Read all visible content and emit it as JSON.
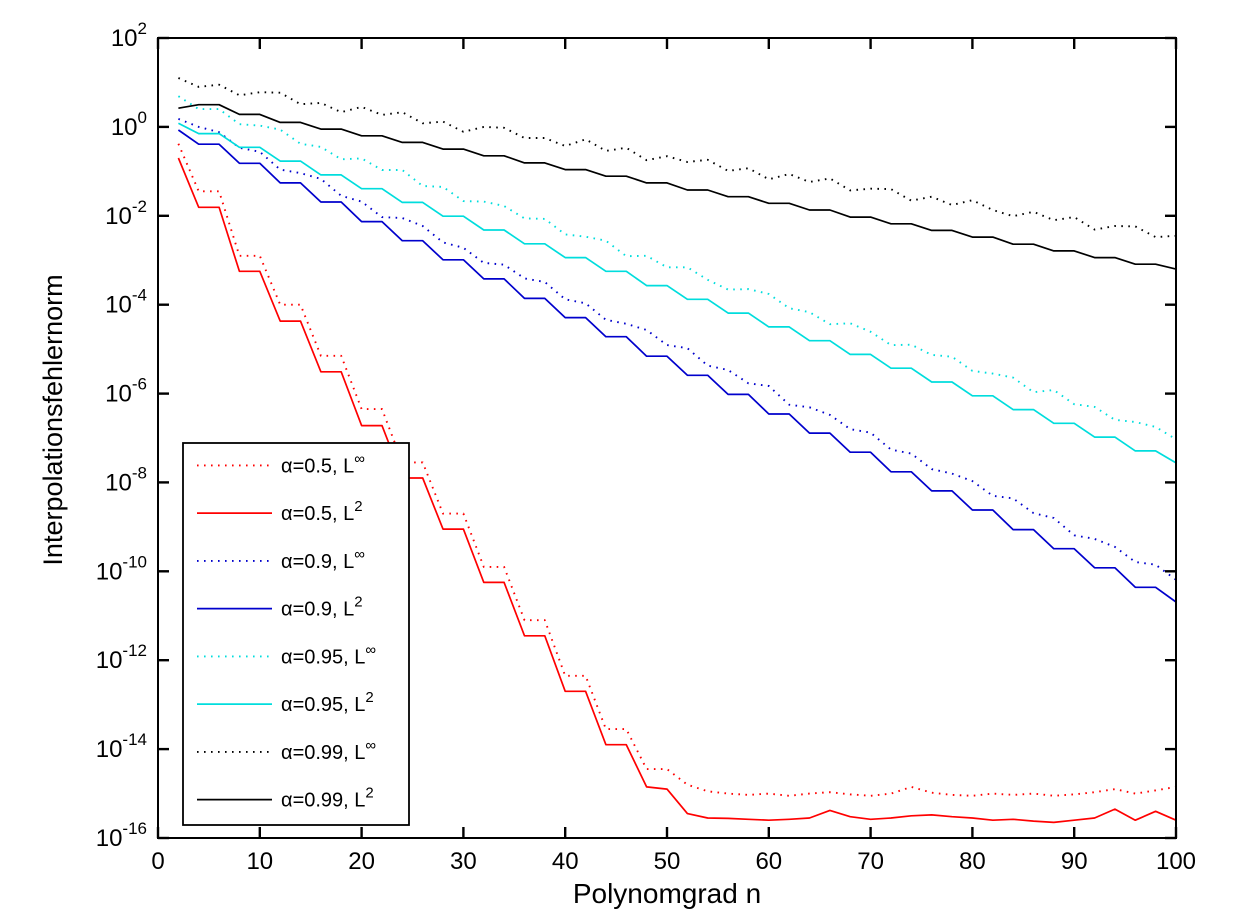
{
  "figure": {
    "background": "#ffffff",
    "axis_color": "#000000",
    "plot_background": "#ffffff"
  },
  "chart_data": {
    "type": "line",
    "title": "",
    "xlabel": "Polynomgrad n",
    "ylabel": "Interpolationsfehlernorm",
    "grid": false,
    "x_axis": {
      "min": 0,
      "max": 100,
      "ticks": [
        0,
        10,
        20,
        30,
        40,
        50,
        60,
        70,
        80,
        90,
        100
      ]
    },
    "y_axis": {
      "scale": "log10",
      "min_exp": -16,
      "max_exp": 2,
      "tick_base": "10",
      "tick_exponents": [
        2,
        0,
        -2,
        -4,
        -6,
        -8,
        -10,
        -12,
        -14,
        -16
      ]
    },
    "legend": {
      "position": "lower-left",
      "background": "#ffffff",
      "border_color": "#000000"
    },
    "x": [
      2,
      4,
      6,
      8,
      10,
      12,
      14,
      16,
      18,
      20,
      22,
      24,
      26,
      28,
      30,
      32,
      34,
      36,
      38,
      40,
      42,
      44,
      46,
      48,
      50,
      52,
      54,
      56,
      58,
      60,
      62,
      64,
      66,
      68,
      70,
      72,
      74,
      76,
      78,
      80,
      82,
      84,
      86,
      88,
      90,
      92,
      94,
      96,
      98,
      100
    ],
    "series": [
      {
        "id": "a05-linf",
        "label": {
          "text": "α=0.5, L",
          "sup": "∞"
        },
        "color": "#ff0000",
        "line_style": "dotted",
        "log10y": [
          -0.38,
          -1.45,
          -1.45,
          -2.9,
          -2.9,
          -4.0,
          -4.0,
          -5.15,
          -5.15,
          -6.35,
          -6.35,
          -7.55,
          -7.55,
          -8.7,
          -8.7,
          -9.9,
          -9.9,
          -11.1,
          -11.1,
          -12.35,
          -12.35,
          -13.55,
          -13.55,
          -14.45,
          -14.45,
          -14.8,
          -14.95,
          -15.0,
          -15.03,
          -15.0,
          -15.05,
          -15.0,
          -14.97,
          -15.02,
          -15.05,
          -15.0,
          -14.85,
          -14.98,
          -15.03,
          -15.05,
          -15.0,
          -15.03,
          -15.0,
          -15.05,
          -15.02,
          -14.97,
          -14.9,
          -15.0,
          -14.93,
          -14.85
        ]
      },
      {
        "id": "a05-l2",
        "label": {
          "text": "α=0.5, L",
          "sup": "2"
        },
        "color": "#ff0000",
        "line_style": "solid",
        "log10y": [
          -0.7,
          -1.81,
          -1.81,
          -3.25,
          -3.25,
          -4.37,
          -4.37,
          -5.51,
          -5.51,
          -6.72,
          -6.72,
          -7.9,
          -7.9,
          -9.05,
          -9.05,
          -10.25,
          -10.25,
          -11.45,
          -11.45,
          -12.7,
          -12.7,
          -13.9,
          -13.9,
          -14.85,
          -14.9,
          -15.45,
          -15.55,
          -15.56,
          -15.58,
          -15.6,
          -15.58,
          -15.55,
          -15.38,
          -15.52,
          -15.58,
          -15.55,
          -15.5,
          -15.48,
          -15.52,
          -15.55,
          -15.6,
          -15.58,
          -15.62,
          -15.65,
          -15.6,
          -15.55,
          -15.35,
          -15.6,
          -15.4,
          -15.6
        ]
      },
      {
        "id": "a09-linf",
        "label": {
          "text": "α=0.9, L",
          "sup": "∞"
        },
        "color": "#0000cc",
        "line_style": "dotted",
        "log10y": [
          0.18,
          0.0,
          -0.12,
          -0.47,
          -0.56,
          -0.96,
          -1.04,
          -1.17,
          -1.55,
          -1.68,
          -2.03,
          -2.05,
          -2.23,
          -2.6,
          -2.72,
          -3.06,
          -3.1,
          -3.41,
          -3.49,
          -3.88,
          -3.97,
          -4.34,
          -4.43,
          -4.57,
          -4.91,
          -4.98,
          -5.37,
          -5.47,
          -5.77,
          -5.83,
          -6.25,
          -6.31,
          -6.48,
          -6.8,
          -6.88,
          -7.26,
          -7.35,
          -7.7,
          -7.8,
          -7.97,
          -8.3,
          -8.36,
          -8.69,
          -8.8,
          -9.19,
          -9.27,
          -9.45,
          -9.79,
          -9.85,
          -10.19
        ]
      },
      {
        "id": "a09-l2",
        "label": {
          "text": "α=0.9, L",
          "sup": "2"
        },
        "color": "#0000cc",
        "line_style": "solid",
        "log10y": [
          -0.07,
          -0.39,
          -0.39,
          -0.82,
          -0.82,
          -1.26,
          -1.26,
          -1.69,
          -1.69,
          -2.13,
          -2.13,
          -2.56,
          -2.56,
          -2.99,
          -2.99,
          -3.42,
          -3.42,
          -3.86,
          -3.86,
          -4.29,
          -4.29,
          -4.72,
          -4.72,
          -5.16,
          -5.16,
          -5.59,
          -5.59,
          -6.02,
          -6.02,
          -6.46,
          -6.46,
          -6.89,
          -6.89,
          -7.32,
          -7.32,
          -7.76,
          -7.76,
          -8.19,
          -8.19,
          -8.62,
          -8.62,
          -9.06,
          -9.06,
          -9.49,
          -9.49,
          -9.92,
          -9.92,
          -10.36,
          -10.36,
          -10.69
        ]
      },
      {
        "id": "a095-linf",
        "label": {
          "text": "α=0.95, L",
          "sup": "∞"
        },
        "color": "#00dddd",
        "line_style": "dotted",
        "log10y": [
          0.69,
          0.4,
          0.4,
          0.06,
          0.03,
          -0.06,
          -0.38,
          -0.45,
          -0.73,
          -0.71,
          -0.97,
          -0.97,
          -1.33,
          -1.35,
          -1.67,
          -1.68,
          -1.78,
          -2.06,
          -2.07,
          -2.42,
          -2.47,
          -2.56,
          -2.91,
          -2.9,
          -3.16,
          -3.16,
          -3.44,
          -3.66,
          -3.65,
          -3.76,
          -4.08,
          -4.17,
          -4.44,
          -4.42,
          -4.61,
          -4.91,
          -4.9,
          -5.13,
          -5.17,
          -5.49,
          -5.55,
          -5.64,
          -5.97,
          -5.92,
          -6.24,
          -6.3,
          -6.59,
          -6.64,
          -6.75,
          -7.03
        ]
      },
      {
        "id": "a095-l2",
        "label": {
          "text": "α=0.95, L",
          "sup": "2"
        },
        "color": "#00dddd",
        "line_style": "solid",
        "log10y": [
          0.08,
          -0.15,
          -0.15,
          -0.46,
          -0.46,
          -0.77,
          -0.77,
          -1.08,
          -1.08,
          -1.39,
          -1.39,
          -1.7,
          -1.7,
          -2.01,
          -2.01,
          -2.32,
          -2.32,
          -2.63,
          -2.63,
          -2.94,
          -2.94,
          -3.25,
          -3.25,
          -3.57,
          -3.57,
          -3.88,
          -3.88,
          -4.19,
          -4.19,
          -4.5,
          -4.5,
          -4.81,
          -4.81,
          -5.12,
          -5.12,
          -5.43,
          -5.43,
          -5.74,
          -5.74,
          -6.05,
          -6.05,
          -6.36,
          -6.36,
          -6.67,
          -6.67,
          -6.98,
          -6.98,
          -7.29,
          -7.29,
          -7.56
        ]
      },
      {
        "id": "a099-linf",
        "label": {
          "text": "α=0.99, L",
          "sup": "∞"
        },
        "color": "#000000",
        "line_style": "dotted",
        "log10y": [
          1.1,
          0.9,
          0.95,
          0.71,
          0.78,
          0.77,
          0.51,
          0.54,
          0.33,
          0.45,
          0.27,
          0.33,
          0.08,
          0.12,
          -0.11,
          0.0,
          -0.02,
          -0.25,
          -0.25,
          -0.43,
          -0.28,
          -0.54,
          -0.47,
          -0.75,
          -0.66,
          -0.79,
          -0.74,
          -0.99,
          -0.93,
          -1.18,
          -1.06,
          -1.24,
          -1.16,
          -1.43,
          -1.39,
          -1.4,
          -1.66,
          -1.57,
          -1.76,
          -1.65,
          -1.87,
          -2.01,
          -1.91,
          -2.1,
          -2.03,
          -2.31,
          -2.23,
          -2.24,
          -2.48,
          -2.45
        ]
      },
      {
        "id": "a099-l2",
        "label": {
          "text": "α=0.99, L",
          "sup": "2"
        },
        "color": "#000000",
        "line_style": "solid",
        "log10y": [
          0.42,
          0.5,
          0.5,
          0.28,
          0.28,
          0.1,
          0.1,
          -0.05,
          -0.05,
          -0.2,
          -0.2,
          -0.35,
          -0.35,
          -0.5,
          -0.5,
          -0.65,
          -0.65,
          -0.81,
          -0.81,
          -0.96,
          -0.96,
          -1.11,
          -1.11,
          -1.26,
          -1.26,
          -1.42,
          -1.42,
          -1.57,
          -1.57,
          -1.72,
          -1.72,
          -1.87,
          -1.87,
          -2.03,
          -2.03,
          -2.18,
          -2.18,
          -2.33,
          -2.33,
          -2.48,
          -2.48,
          -2.64,
          -2.64,
          -2.79,
          -2.79,
          -2.94,
          -2.94,
          -3.09,
          -3.09,
          -3.2
        ]
      }
    ]
  }
}
